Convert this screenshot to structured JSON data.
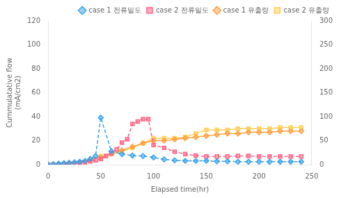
{
  "chart_data": {
    "type": "line",
    "xlabel": "Elapsed time(hr)",
    "ylabel": "Cummulatative flow\n(mA/cm2)",
    "xlim": [
      0,
      250
    ],
    "xticks": [
      0,
      50,
      100,
      150,
      200,
      250
    ],
    "ylim": [
      0,
      120
    ],
    "yticks": [
      0,
      20,
      40,
      60,
      80,
      100,
      120
    ],
    "y2lim": [
      0,
      300
    ],
    "y2ticks": [
      0,
      50,
      100,
      150,
      200,
      250,
      300
    ],
    "grid": false,
    "legend": "upper right",
    "series": [
      {
        "name": "case 1 전류밀도",
        "axis": "y2",
        "marker": "diamond",
        "line_style": "dashed",
        "x": [
          0,
          5,
          10,
          15,
          20,
          25,
          30,
          35,
          40,
          45,
          50,
          60,
          70,
          80,
          90,
          100,
          110,
          120,
          130,
          140,
          150,
          160,
          170,
          180,
          190,
          200,
          210,
          220,
          230,
          240
        ],
        "values": [
          0,
          1,
          2,
          3,
          4,
          5,
          6,
          8,
          12,
          18,
          98,
          28,
          22,
          19,
          18,
          15,
          11,
          9,
          8,
          8,
          8,
          7,
          7,
          6,
          6,
          6,
          6,
          6,
          6,
          6
        ]
      },
      {
        "name": "case 2 전류밀도",
        "axis": "y2",
        "marker": "square",
        "line_style": "dashed",
        "x": [
          0,
          5,
          10,
          15,
          20,
          25,
          30,
          35,
          40,
          45,
          50,
          55,
          60,
          65,
          70,
          75,
          80,
          85,
          90,
          95,
          100,
          110,
          120,
          130,
          140,
          150,
          160,
          170,
          180,
          190,
          200,
          210,
          220,
          230,
          240
        ],
        "values": [
          0,
          0,
          0,
          1,
          2,
          3,
          4,
          5,
          7,
          9,
          12,
          18,
          24,
          32,
          46,
          53,
          85,
          90,
          95,
          95,
          41,
          35,
          27,
          22,
          19,
          17,
          17,
          17,
          18,
          18,
          17,
          17,
          17,
          17,
          17
        ]
      },
      {
        "name": "case 1 유출량",
        "axis": "y",
        "marker": "diamond",
        "line_style": "solid",
        "x": [
          0,
          10,
          20,
          30,
          40,
          50,
          60,
          70,
          80,
          90,
          100,
          110,
          120,
          130,
          140,
          150,
          160,
          170,
          180,
          190,
          200,
          210,
          220,
          230,
          240
        ],
        "values": [
          0,
          0,
          1,
          2,
          4,
          6,
          9,
          12,
          15,
          18,
          20,
          20,
          21,
          22,
          23,
          24,
          25,
          26,
          26,
          27,
          27,
          27,
          28,
          28,
          28
        ]
      },
      {
        "name": "case 2 유출량",
        "axis": "y",
        "marker": "square",
        "line_style": "solid",
        "x": [
          0,
          10,
          20,
          30,
          40,
          50,
          60,
          70,
          80,
          90,
          100,
          110,
          120,
          130,
          140,
          150,
          160,
          170,
          180,
          190,
          200,
          210,
          220,
          230,
          240
        ],
        "values": [
          0,
          0,
          1,
          2,
          4,
          7,
          9,
          11,
          14,
          18,
          22,
          22,
          22,
          23,
          26,
          29,
          29,
          29,
          30,
          30,
          30,
          30,
          31,
          31,
          31
        ]
      }
    ]
  }
}
